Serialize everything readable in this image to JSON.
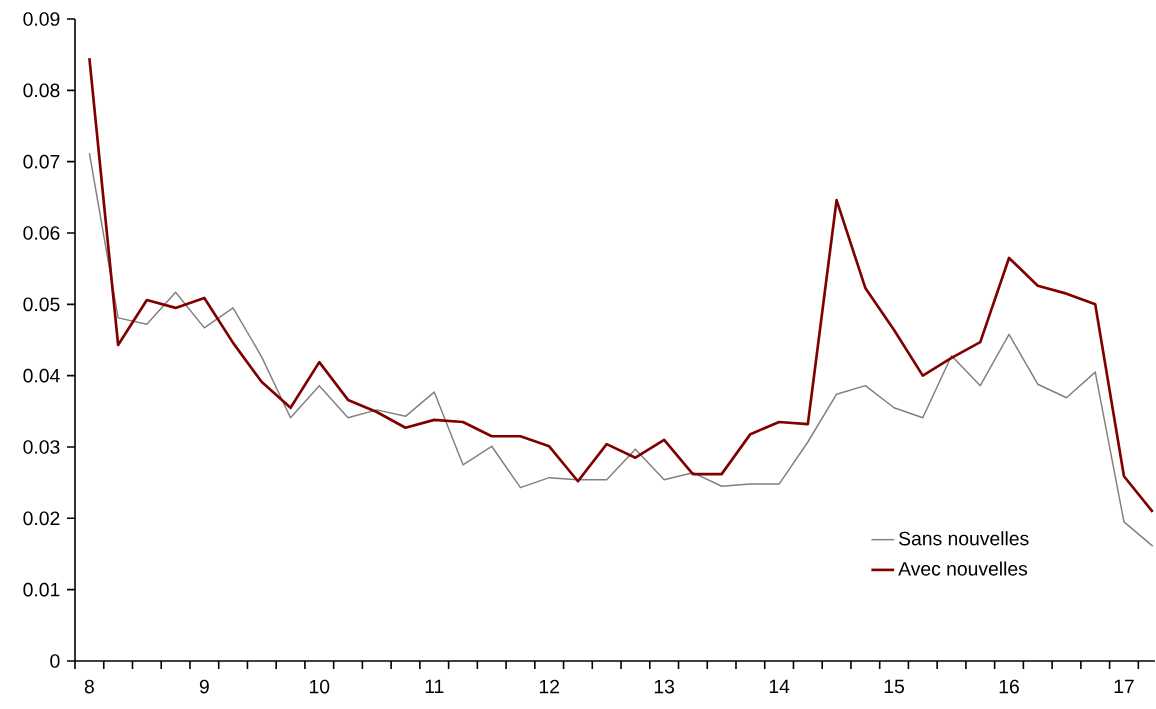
{
  "chart_data": {
    "type": "line",
    "categories": [
      "8",
      null,
      null,
      null,
      "9",
      null,
      null,
      null,
      "10",
      null,
      null,
      null,
      "11",
      null,
      null,
      null,
      "12",
      null,
      null,
      null,
      "13",
      null,
      null,
      null,
      "14",
      null,
      null,
      null,
      "15",
      null,
      null,
      null,
      "16",
      null,
      null,
      null,
      "17",
      null
    ],
    "series": [
      {
        "name": "Sans nouvelles",
        "color": "#808080",
        "values": [
          0.0712,
          0.0481,
          0.0472,
          0.0517,
          0.0467,
          0.0495,
          0.0426,
          0.0341,
          0.0386,
          0.0341,
          0.0352,
          0.0343,
          0.0377,
          0.0275,
          0.0301,
          0.0243,
          0.0257,
          0.0254,
          0.0254,
          0.0297,
          0.0254,
          0.0264,
          0.0245,
          0.0248,
          0.0248,
          0.0307,
          0.0374,
          0.0386,
          0.0355,
          0.0341,
          0.0428,
          0.0386,
          0.0458,
          0.0388,
          0.0369,
          0.0405,
          0.0195,
          0.0161
        ]
      },
      {
        "name": "Avec nouvelles",
        "color": "#800000",
        "values": [
          0.0845,
          0.0443,
          0.0506,
          0.0495,
          0.0509,
          0.0446,
          0.0391,
          0.0355,
          0.0419,
          0.0366,
          0.0349,
          0.0327,
          0.0338,
          0.0335,
          0.0315,
          0.0315,
          0.0301,
          0.0252,
          0.0304,
          0.0285,
          0.031,
          0.0262,
          0.0262,
          0.0318,
          0.0335,
          0.0332,
          0.0646,
          0.0523,
          0.0464,
          0.04,
          0.0425,
          0.0447,
          0.0565,
          0.0526,
          0.0515,
          0.05,
          0.0259,
          0.0209
        ]
      }
    ],
    "ylim": [
      0,
      0.09
    ],
    "yticks": [
      0,
      0.01,
      0.02,
      0.03,
      0.04,
      0.05,
      0.06,
      0.07,
      0.08,
      0.09
    ],
    "legend": "bottom right"
  }
}
